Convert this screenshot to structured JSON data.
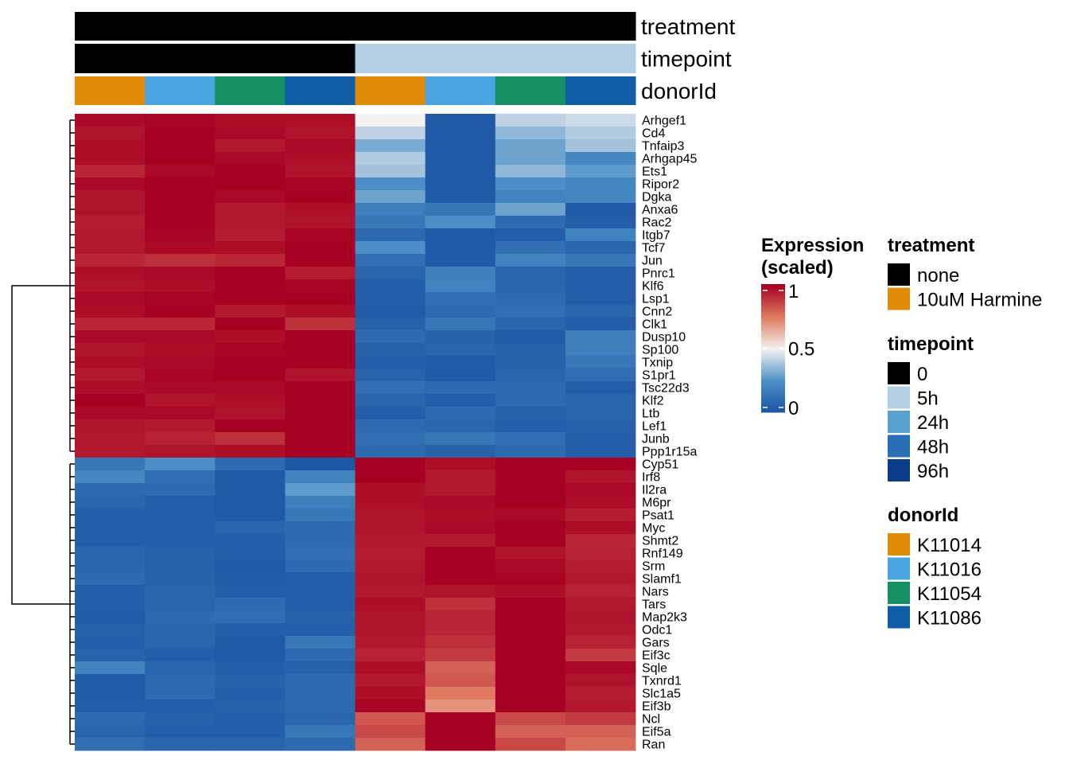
{
  "chart_data": {
    "type": "heatmap",
    "title": "",
    "xlabel": "",
    "ylabel": "",
    "columns": [
      {
        "treatment": "none",
        "timepoint": "0",
        "donorId": "K11014"
      },
      {
        "treatment": "none",
        "timepoint": "0",
        "donorId": "K11016"
      },
      {
        "treatment": "none",
        "timepoint": "0",
        "donorId": "K11054"
      },
      {
        "treatment": "none",
        "timepoint": "0",
        "donorId": "K11086"
      },
      {
        "treatment": "none",
        "timepoint": "5h",
        "donorId": "K11014"
      },
      {
        "treatment": "none",
        "timepoint": "5h",
        "donorId": "K11016"
      },
      {
        "treatment": "none",
        "timepoint": "5h",
        "donorId": "K11054"
      },
      {
        "treatment": "none",
        "timepoint": "5h",
        "donorId": "K11086"
      }
    ],
    "rows": [
      "Arhgef1",
      "Cd4",
      "Tnfaip3",
      "Arhgap45",
      "Ets1",
      "Ripor2",
      "Dgka",
      "Anxa6",
      "Rac2",
      "Itgb7",
      "Tcf7",
      "Jun",
      "Pnrc1",
      "Klf6",
      "Lsp1",
      "Cnn2",
      "Clk1",
      "Dusp10",
      "Sp100",
      "Txnip",
      "S1pr1",
      "Tsc22d3",
      "Klf2",
      "Ltb",
      "Lef1",
      "Junb",
      "Ppp1r15a",
      "Cyp51",
      "Irf8",
      "Il2ra",
      "M6pr",
      "Psat1",
      "Myc",
      "Shmt2",
      "Rnf149",
      "Srm",
      "Slamf1",
      "Nars",
      "Tars",
      "Map2k3",
      "Odc1",
      "Gars",
      "Eif3c",
      "Sqle",
      "Txnrd1",
      "Slc1a5",
      "Eif3b",
      "Ncl",
      "Eif5a",
      "Ran"
    ],
    "values": [
      [
        0.98,
        0.99,
        0.97,
        0.97,
        0.5,
        0.03,
        0.42,
        0.44
      ],
      [
        0.96,
        1.0,
        0.98,
        0.96,
        0.42,
        0.03,
        0.35,
        0.4
      ],
      [
        0.97,
        1.0,
        0.95,
        0.98,
        0.32,
        0.03,
        0.3,
        0.38
      ],
      [
        0.97,
        1.0,
        0.98,
        0.97,
        0.4,
        0.03,
        0.3,
        0.22
      ],
      [
        0.92,
        0.98,
        1.0,
        0.96,
        0.38,
        0.03,
        0.35,
        0.28
      ],
      [
        0.98,
        1.0,
        1.0,
        0.99,
        0.25,
        0.03,
        0.25,
        0.22
      ],
      [
        0.96,
        1.0,
        0.98,
        1.0,
        0.3,
        0.03,
        0.2,
        0.22
      ],
      [
        0.96,
        1.0,
        0.95,
        0.97,
        0.18,
        0.15,
        0.3,
        0.03
      ],
      [
        0.94,
        1.0,
        0.95,
        0.96,
        0.15,
        0.25,
        0.1,
        0.05
      ],
      [
        0.95,
        0.99,
        0.94,
        0.99,
        0.1,
        0.03,
        0.05,
        0.2
      ],
      [
        0.95,
        0.98,
        0.97,
        1.0,
        0.25,
        0.03,
        0.12,
        0.08
      ],
      [
        0.92,
        0.9,
        0.92,
        1.0,
        0.12,
        0.03,
        0.2,
        0.15
      ],
      [
        0.97,
        0.98,
        1.0,
        0.94,
        0.08,
        0.18,
        0.08,
        0.05
      ],
      [
        0.96,
        0.97,
        1.0,
        0.99,
        0.05,
        0.2,
        0.08,
        0.05
      ],
      [
        0.98,
        0.99,
        1.0,
        1.0,
        0.05,
        0.12,
        0.1,
        0.05
      ],
      [
        0.97,
        1.0,
        0.95,
        0.97,
        0.04,
        0.1,
        0.12,
        0.08
      ],
      [
        0.92,
        0.92,
        1.0,
        0.9,
        0.06,
        0.15,
        0.08,
        0.05
      ],
      [
        0.98,
        0.98,
        0.97,
        1.0,
        0.1,
        0.06,
        0.04,
        0.18
      ],
      [
        0.96,
        0.97,
        0.99,
        1.0,
        0.06,
        0.08,
        0.06,
        0.18
      ],
      [
        0.97,
        0.98,
        1.0,
        1.0,
        0.05,
        0.04,
        0.06,
        0.15
      ],
      [
        0.95,
        0.99,
        1.0,
        0.96,
        0.07,
        0.03,
        0.08,
        0.12
      ],
      [
        0.97,
        0.98,
        0.98,
        1.0,
        0.12,
        0.1,
        0.1,
        0.05
      ],
      [
        1.0,
        0.96,
        0.97,
        1.0,
        0.08,
        0.05,
        0.1,
        0.08
      ],
      [
        0.98,
        0.98,
        0.96,
        1.0,
        0.05,
        0.1,
        0.06,
        0.08
      ],
      [
        0.96,
        0.95,
        1.0,
        1.0,
        0.1,
        0.08,
        0.05,
        0.06
      ],
      [
        0.95,
        0.93,
        0.9,
        1.0,
        0.12,
        0.15,
        0.12,
        0.05
      ],
      [
        0.95,
        0.96,
        0.97,
        1.0,
        0.1,
        0.06,
        0.1,
        0.05
      ],
      [
        0.15,
        0.25,
        0.1,
        0.02,
        1.0,
        0.97,
        1.0,
        1.0
      ],
      [
        0.22,
        0.12,
        0.03,
        0.2,
        1.0,
        0.95,
        1.0,
        0.96
      ],
      [
        0.1,
        0.1,
        0.03,
        0.28,
        0.97,
        0.95,
        1.0,
        0.98
      ],
      [
        0.08,
        0.05,
        0.03,
        0.18,
        0.97,
        0.98,
        1.0,
        0.97
      ],
      [
        0.05,
        0.05,
        0.03,
        0.15,
        0.96,
        0.97,
        0.98,
        0.94
      ],
      [
        0.05,
        0.05,
        0.08,
        0.1,
        0.96,
        0.98,
        1.0,
        0.97
      ],
      [
        0.05,
        0.05,
        0.05,
        0.1,
        0.95,
        0.95,
        1.0,
        0.92
      ],
      [
        0.08,
        0.06,
        0.05,
        0.12,
        0.94,
        1.0,
        0.96,
        0.93
      ],
      [
        0.08,
        0.06,
        0.03,
        0.1,
        0.95,
        1.0,
        0.98,
        0.94
      ],
      [
        0.1,
        0.06,
        0.04,
        0.05,
        0.96,
        1.0,
        0.99,
        0.95
      ],
      [
        0.05,
        0.08,
        0.05,
        0.05,
        0.95,
        0.96,
        0.97,
        0.93
      ],
      [
        0.05,
        0.08,
        0.1,
        0.05,
        0.97,
        0.9,
        1.0,
        0.95
      ],
      [
        0.04,
        0.1,
        0.12,
        0.06,
        0.96,
        0.92,
        1.0,
        0.96
      ],
      [
        0.06,
        0.08,
        0.05,
        0.05,
        0.96,
        0.92,
        1.0,
        0.95
      ],
      [
        0.05,
        0.08,
        0.03,
        0.15,
        0.95,
        0.9,
        1.0,
        0.93
      ],
      [
        0.07,
        0.05,
        0.03,
        0.1,
        0.93,
        0.88,
        1.0,
        0.88
      ],
      [
        0.2,
        0.08,
        0.05,
        0.06,
        0.97,
        0.8,
        1.0,
        0.98
      ],
      [
        0.04,
        0.1,
        0.06,
        0.1,
        0.95,
        0.82,
        1.0,
        0.96
      ],
      [
        0.04,
        0.1,
        0.05,
        0.1,
        0.97,
        0.75,
        1.0,
        0.94
      ],
      [
        0.05,
        0.05,
        0.06,
        0.1,
        0.99,
        0.7,
        1.0,
        0.95
      ],
      [
        0.1,
        0.06,
        0.05,
        0.08,
        0.82,
        1.0,
        0.85,
        0.88
      ],
      [
        0.08,
        0.05,
        0.05,
        0.15,
        0.85,
        1.0,
        0.8,
        0.8
      ],
      [
        0.12,
        0.08,
        0.08,
        0.1,
        0.8,
        1.0,
        0.85,
        0.78
      ]
    ],
    "annotation_rows": [
      "treatment",
      "timepoint",
      "donorId"
    ],
    "colorbar": {
      "title_line1": "Expression",
      "title_line2": "(scaled)",
      "ticks": [
        "1",
        "0.5",
        "0"
      ],
      "tick_values": [
        1,
        0.5,
        0
      ],
      "stops": [
        {
          "v": 0.0,
          "c": "#1a52a0"
        },
        {
          "v": 0.25,
          "c": "#4b8fc6"
        },
        {
          "v": 0.5,
          "c": "#f4f2f1"
        },
        {
          "v": 0.75,
          "c": "#e07a60"
        },
        {
          "v": 1.0,
          "c": "#a60022"
        }
      ]
    },
    "legends": {
      "treatment": {
        "title": "treatment",
        "items": [
          {
            "label": "none",
            "color": "#000000"
          },
          {
            "label": "10uM Harmine",
            "color": "#e08c0a"
          }
        ]
      },
      "timepoint": {
        "title": "timepoint",
        "items": [
          {
            "label": "0",
            "color": "#000000"
          },
          {
            "label": "5h",
            "color": "#b3cfe3"
          },
          {
            "label": "24h",
            "color": "#5aa0ce"
          },
          {
            "label": "48h",
            "color": "#2a6fb6"
          },
          {
            "label": "96h",
            "color": "#0a3c8a"
          }
        ]
      },
      "donorId": {
        "title": "donorId",
        "items": [
          {
            "label": "K11014",
            "color": "#e08c0a"
          },
          {
            "label": "K11016",
            "color": "#49a6e2"
          },
          {
            "label": "K11054",
            "color": "#168f62"
          },
          {
            "label": "K11086",
            "color": "#0e5da5"
          }
        ]
      }
    }
  }
}
